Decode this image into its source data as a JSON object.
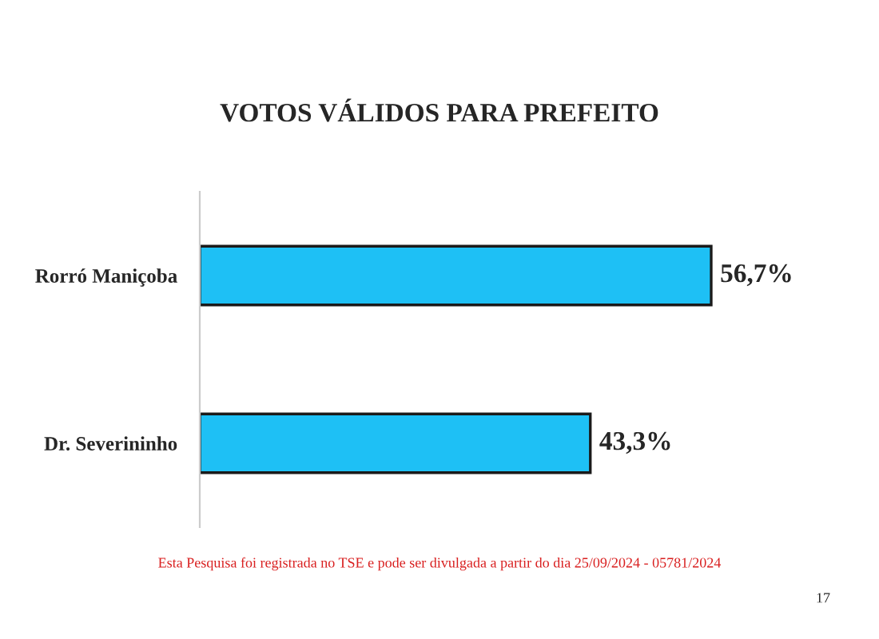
{
  "chart_data": {
    "type": "bar",
    "orientation": "horizontal",
    "title": "VOTOS VÁLIDOS PARA PREFEITO",
    "categories": [
      "Rorró Maniçoba",
      "Dr. Severininho"
    ],
    "values": [
      56.7,
      43.3
    ],
    "value_labels": [
      "56,7%",
      "43,3%"
    ],
    "color": "#1ec0f5",
    "tick_labels": "y",
    "grid": false,
    "legend": false,
    "annotations": [
      "Esta Pesquisa foi registrada no TSE e pode ser divulgada a partir do dia 25/09/2024 - 05781/2024",
      "17"
    ]
  }
}
